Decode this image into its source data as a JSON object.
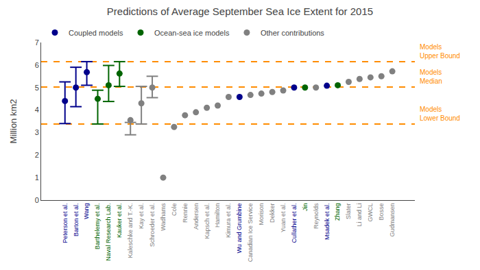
{
  "chart_data": {
    "type": "scatter",
    "title": "Predictions of Average September Sea Ice Extent for 2015",
    "ylabel": "Million km2",
    "ylim": [
      0,
      7
    ],
    "yticks": [
      0,
      1,
      2,
      3,
      4,
      5,
      6,
      7
    ],
    "grid": false,
    "legend": "upper left",
    "marker": "circle",
    "categories": [
      "Wadhams",
      "Cole",
      "Kaleschke and T.-K.",
      "Rennie",
      "Andersen",
      "Kapsch et al.",
      "Hamilton",
      "Kay et al.",
      "Peterson et al.",
      "Barthelemy et al.",
      "Kimura et al.",
      "Wu and Grumbine",
      "Canadian Ice Service",
      "Morison",
      "Dekker",
      "Yuan et al.",
      "Cullather et al.",
      "Jin",
      "Barton et al.",
      "Schroeder et al.",
      "Reynolds",
      "Msadek et al.",
      "Naval Research Lab.",
      "Zhang",
      "Slater",
      "Li and Li",
      "GWCL",
      "Bosse",
      "Kauker et al.",
      "Wang",
      "Gudmansen"
    ],
    "series": [
      {
        "name": "Coupled models",
        "color": "#00008B",
        "values": [
          null,
          null,
          null,
          null,
          null,
          null,
          null,
          null,
          4.4,
          null,
          null,
          4.58,
          null,
          null,
          null,
          null,
          5.0,
          null,
          5.0,
          null,
          null,
          5.08,
          null,
          null,
          null,
          null,
          null,
          null,
          null,
          5.68,
          null
        ],
        "lo": [
          null,
          null,
          null,
          null,
          null,
          null,
          null,
          null,
          3.4,
          null,
          null,
          null,
          null,
          null,
          null,
          null,
          null,
          null,
          4.15,
          null,
          null,
          null,
          null,
          null,
          null,
          null,
          null,
          null,
          null,
          5.1,
          null
        ],
        "hi": [
          null,
          null,
          null,
          null,
          null,
          null,
          null,
          null,
          5.25,
          null,
          null,
          null,
          null,
          null,
          null,
          null,
          null,
          null,
          5.9,
          null,
          null,
          null,
          null,
          null,
          null,
          null,
          null,
          null,
          null,
          6.15,
          null
        ]
      },
      {
        "name": "Ocean-sea ice models",
        "color": "#006400",
        "values": [
          null,
          null,
          null,
          null,
          null,
          null,
          null,
          null,
          null,
          4.5,
          null,
          null,
          null,
          null,
          null,
          null,
          null,
          5.0,
          null,
          null,
          null,
          null,
          5.1,
          5.1,
          null,
          null,
          null,
          null,
          5.62,
          null,
          null
        ],
        "lo": [
          null,
          null,
          null,
          null,
          null,
          null,
          null,
          null,
          null,
          3.38,
          null,
          null,
          null,
          null,
          null,
          null,
          null,
          null,
          null,
          null,
          null,
          null,
          4.38,
          null,
          null,
          null,
          null,
          null,
          5.05,
          null,
          null
        ],
        "hi": [
          null,
          null,
          null,
          null,
          null,
          null,
          null,
          null,
          null,
          4.88,
          null,
          null,
          null,
          null,
          null,
          null,
          null,
          null,
          null,
          null,
          null,
          null,
          5.98,
          null,
          null,
          null,
          null,
          null,
          6.15,
          null,
          null
        ]
      },
      {
        "name": "Other contributions",
        "color": "#808080",
        "values": [
          1.0,
          3.25,
          3.55,
          3.77,
          3.9,
          4.1,
          4.2,
          4.3,
          null,
          null,
          4.58,
          null,
          4.67,
          4.73,
          4.8,
          4.87,
          null,
          null,
          null,
          5.0,
          5.0,
          null,
          null,
          null,
          5.25,
          5.38,
          5.45,
          5.5,
          null,
          null,
          5.72
        ],
        "lo": [
          null,
          null,
          2.9,
          null,
          null,
          null,
          null,
          3.38,
          null,
          null,
          null,
          null,
          null,
          null,
          null,
          null,
          null,
          null,
          null,
          4.55,
          null,
          null,
          null,
          null,
          null,
          null,
          null,
          null,
          null,
          null,
          null
        ],
        "hi": [
          null,
          null,
          3.45,
          null,
          null,
          null,
          null,
          5.05,
          null,
          null,
          null,
          null,
          null,
          null,
          null,
          null,
          null,
          null,
          null,
          5.5,
          null,
          null,
          null,
          null,
          null,
          null,
          null,
          null,
          null,
          null,
          null
        ]
      }
    ],
    "reference_lines": {
      "color": "#FF8C00",
      "line_style": "dashed",
      "lines": [
        {
          "value": 6.15,
          "label": "Models\nUpper Bound"
        },
        {
          "value": 5.02,
          "label": "Models\nMedian"
        },
        {
          "value": 3.38,
          "label": "Models\nLower Bound"
        }
      ]
    }
  }
}
